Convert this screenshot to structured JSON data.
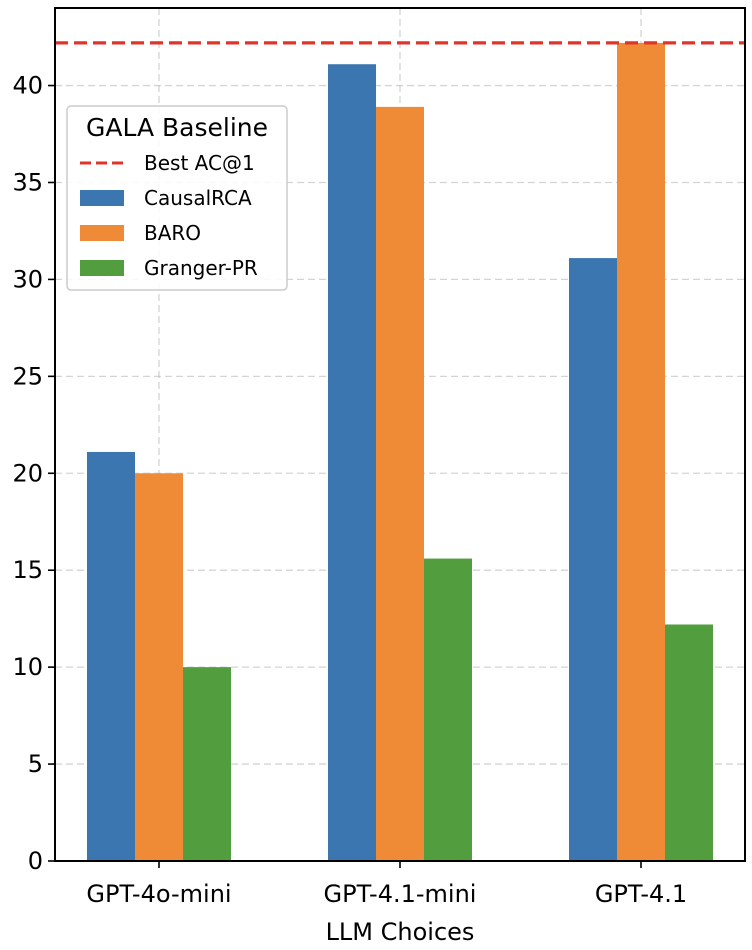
{
  "chart_data": {
    "type": "bar",
    "title": "",
    "xlabel": "LLM Choices",
    "ylabel": "",
    "categories": [
      "GPT-4o-mini",
      "GPT-4.1-mini",
      "GPT-4.1"
    ],
    "series": [
      {
        "name": "CausalRCA",
        "color": "#3b76b1",
        "values": [
          21.1,
          41.1,
          31.1
        ]
      },
      {
        "name": "BARO",
        "color": "#ef8a37",
        "values": [
          20.0,
          38.9,
          42.2
        ]
      },
      {
        "name": "Granger-PR",
        "color": "#529e3f",
        "values": [
          10.0,
          15.6,
          12.2
        ]
      }
    ],
    "reference_line": {
      "name": "Best AC@1",
      "value": 42.2,
      "color": "#e0342a",
      "style": "dashed"
    },
    "legend": {
      "title": "GALA Baseline",
      "placement": "upper-left"
    },
    "ylim": [
      0,
      44
    ],
    "yticks": [
      0,
      5,
      10,
      15,
      20,
      25,
      30,
      35,
      40
    ],
    "grid": true
  }
}
